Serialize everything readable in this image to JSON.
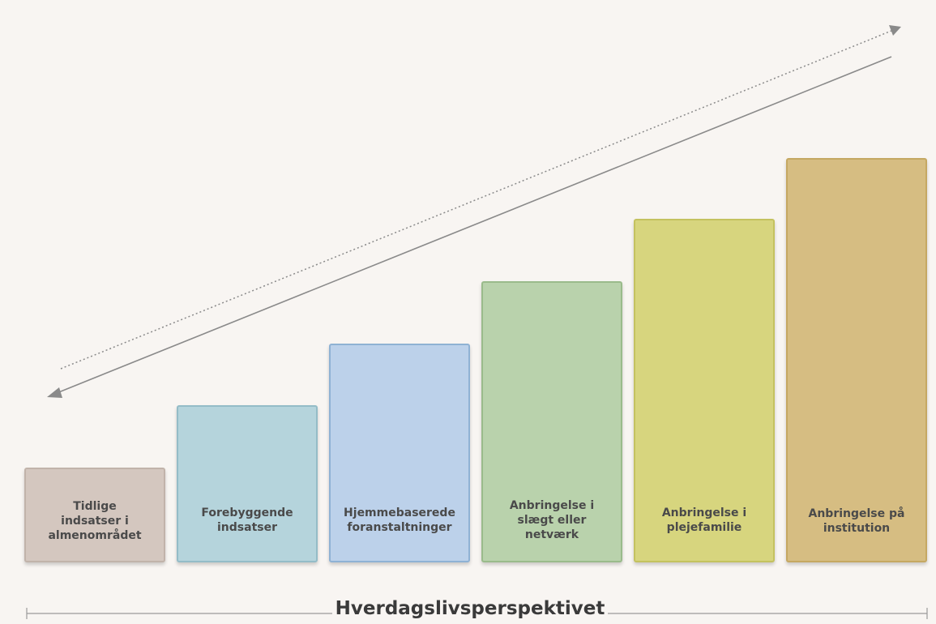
{
  "steps": [
    {
      "label": "Tidlige indsatser i almenområdet",
      "fill": "#d4c7bf",
      "border": "#c1b3aa"
    },
    {
      "label": "Forebyggende indsatser",
      "fill": "#b5d4dc",
      "border": "#94bcc7"
    },
    {
      "label": "Hjemmebaserede foranstaltninger",
      "fill": "#bcd1ea",
      "border": "#8fb2d4"
    },
    {
      "label": "Anbringelse i slægt eller netværk",
      "fill": "#b9d2ac",
      "border": "#9abb8b"
    },
    {
      "label": "Anbringelse i plejefamilie",
      "fill": "#d7d57e",
      "border": "#c4c25f"
    },
    {
      "label": "Anbringelse på institution",
      "fill": "#d6bd82",
      "border": "#c5a862"
    }
  ],
  "footer": {
    "title": "Hverdagslivsperspektivet"
  },
  "colors": {
    "arrow": "#8a8a8a",
    "baseline": "#9a9a9a",
    "background": "#f8f5f2"
  }
}
